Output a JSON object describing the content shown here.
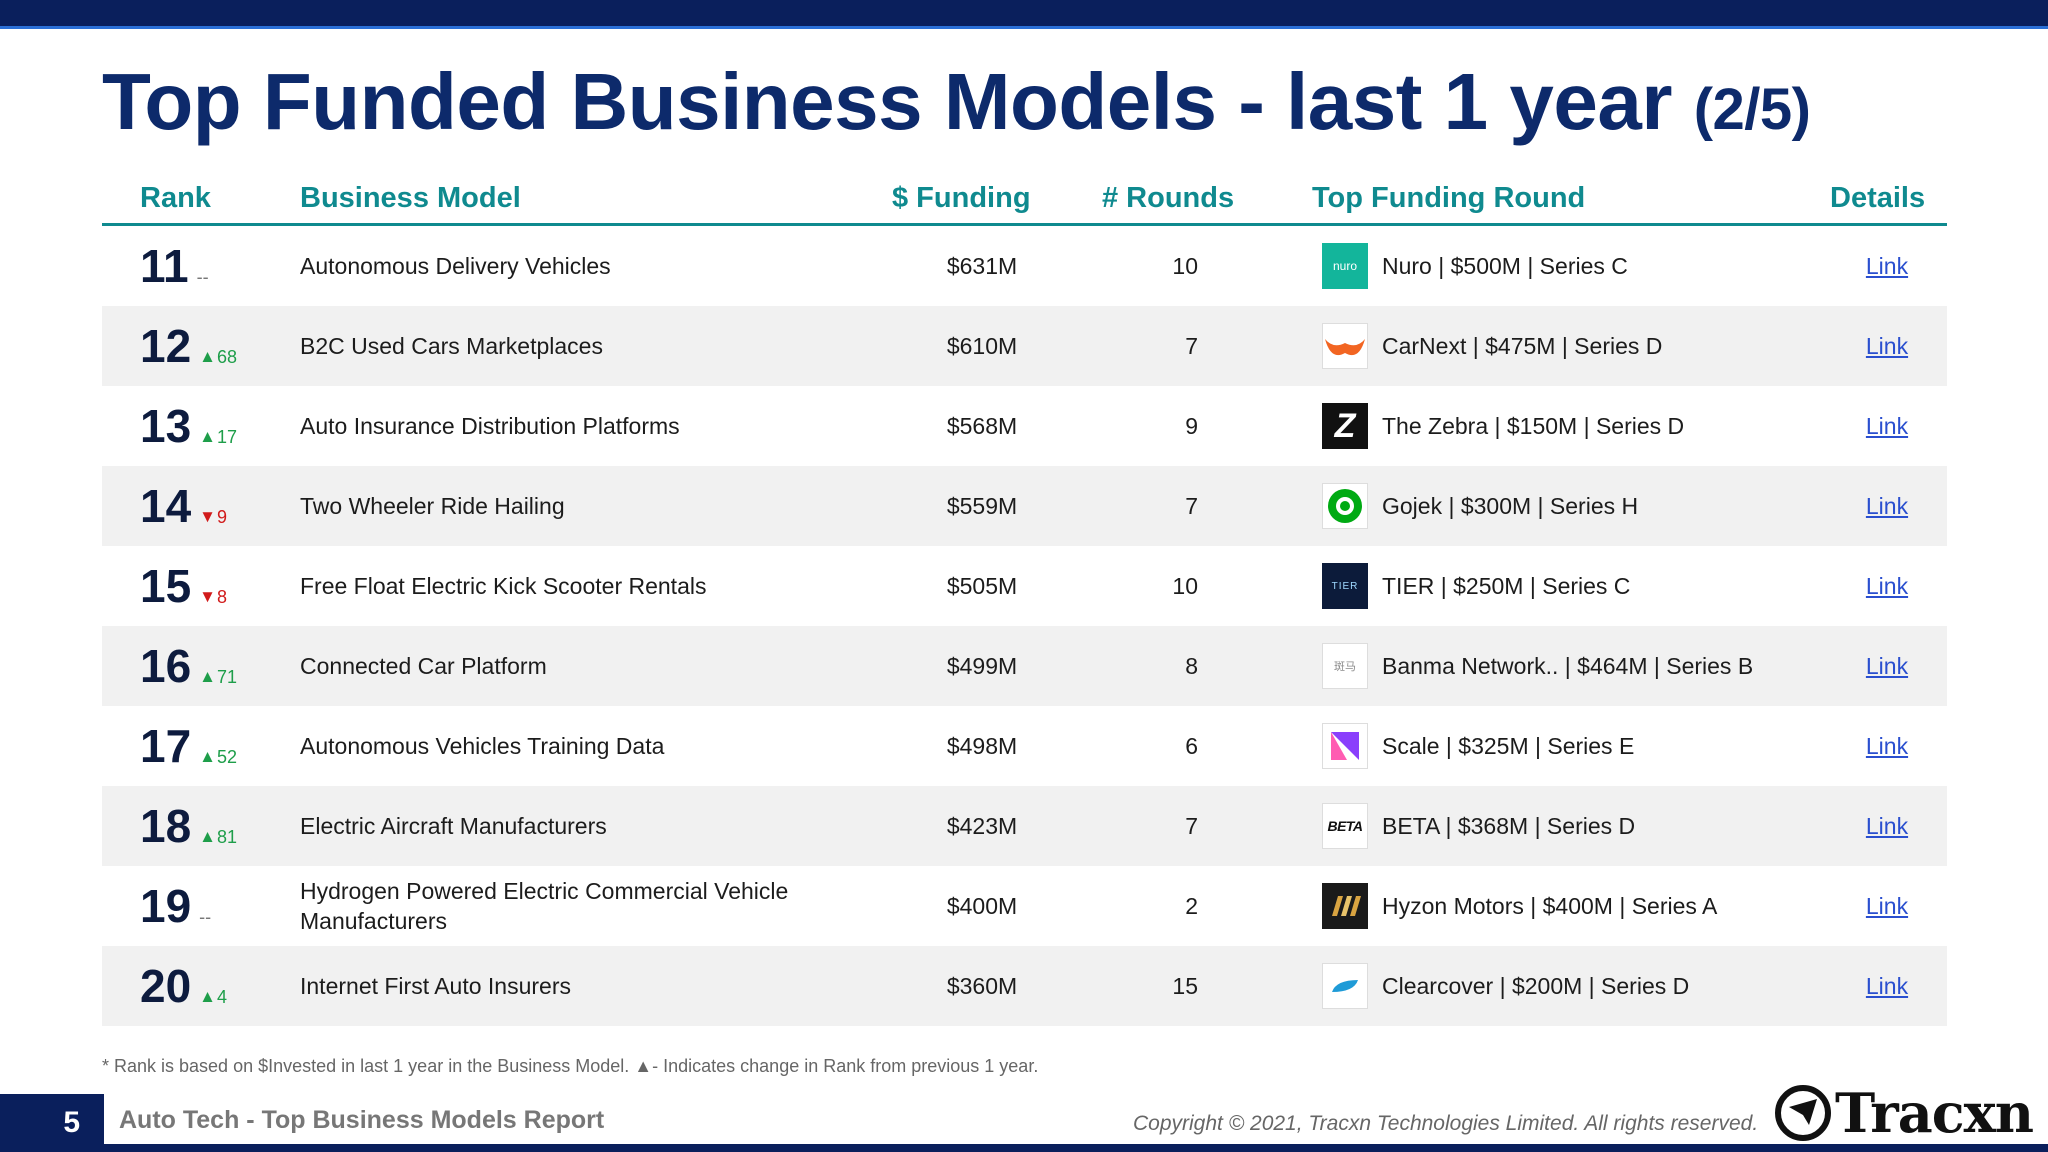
{
  "title": {
    "main": "Top Funded Business Models - last 1 year",
    "page": "(2/5)"
  },
  "headers": {
    "rank": "Rank",
    "model": "Business Model",
    "funding": "$ Funding",
    "rounds": "# Rounds",
    "top_round": "Top Funding Round",
    "details": "Details"
  },
  "rows": [
    {
      "rank": "11",
      "dir": "none",
      "change": "--",
      "model": "Autonomous Delivery Vehicles",
      "funding": "$631M",
      "rounds": "10",
      "logo": "nuro-logo",
      "round": "Nuro | $500M | Series C",
      "link": "Link"
    },
    {
      "rank": "12",
      "dir": "up",
      "change": "68",
      "model": "B2C Used Cars Marketplaces",
      "funding": "$610M",
      "rounds": "7",
      "logo": "carnext-logo",
      "round": "CarNext | $475M | Series D",
      "link": "Link"
    },
    {
      "rank": "13",
      "dir": "up",
      "change": "17",
      "model": "Auto Insurance Distribution Platforms",
      "funding": "$568M",
      "rounds": "9",
      "logo": "zebra-logo",
      "round": "The Zebra | $150M | Series D",
      "link": "Link"
    },
    {
      "rank": "14",
      "dir": "down",
      "change": "9",
      "model": "Two Wheeler Ride Hailing",
      "funding": "$559M",
      "rounds": "7",
      "logo": "gojek-logo",
      "round": "Gojek | $300M | Series H",
      "link": "Link"
    },
    {
      "rank": "15",
      "dir": "down",
      "change": "8",
      "model": "Free Float Electric Kick Scooter Rentals",
      "funding": "$505M",
      "rounds": "10",
      "logo": "tier-logo",
      "round": "TIER | $250M | Series C",
      "link": "Link"
    },
    {
      "rank": "16",
      "dir": "up",
      "change": "71",
      "model": "Connected Car Platform",
      "funding": "$499M",
      "rounds": "8",
      "logo": "banma-logo",
      "round": "Banma Network.. | $464M | Series B",
      "link": "Link"
    },
    {
      "rank": "17",
      "dir": "up",
      "change": "52",
      "model": "Autonomous Vehicles Training Data",
      "funding": "$498M",
      "rounds": "6",
      "logo": "scale-logo",
      "round": "Scale | $325M | Series E",
      "link": "Link"
    },
    {
      "rank": "18",
      "dir": "up",
      "change": "81",
      "model": "Electric Aircraft Manufacturers",
      "funding": "$423M",
      "rounds": "7",
      "logo": "beta-logo",
      "round": "BETA | $368M | Series D",
      "link": "Link"
    },
    {
      "rank": "19",
      "dir": "none",
      "change": "--",
      "model": "Hydrogen Powered Electric Commercial Vehicle Manufacturers",
      "funding": "$400M",
      "rounds": "2",
      "logo": "hyzon-logo",
      "round": "Hyzon Motors | $400M | Series A",
      "link": "Link"
    },
    {
      "rank": "20",
      "dir": "up",
      "change": "4",
      "model": "Internet First Auto Insurers",
      "funding": "$360M",
      "rounds": "15",
      "logo": "clearcover-logo",
      "round": "Clearcover | $200M | Series D",
      "link": "Link"
    }
  ],
  "logos": {
    "nuro": "nuro",
    "carnext": "CarNext",
    "zebra": "Z",
    "tier": "TIER",
    "banma": "斑马",
    "beta": "BETA"
  },
  "footnote": "*  Rank is based on $Invested in last 1 year in the Business Model.  ▲- Indicates change in Rank from previous 1 year.",
  "footer": {
    "page_number": "5",
    "report_title": "Auto Tech - Top Business Models Report",
    "copyright": "Copyright © 2021, Tracxn Technologies Limited. All rights reserved.",
    "brand": "Tracxn"
  },
  "colors": {
    "navy": "#0a1f5c",
    "title": "#0d2a6b",
    "teal": "#0f8a8f",
    "up": "#1e9e4a",
    "down": "#d11a1a",
    "link": "#2a4fcf"
  }
}
